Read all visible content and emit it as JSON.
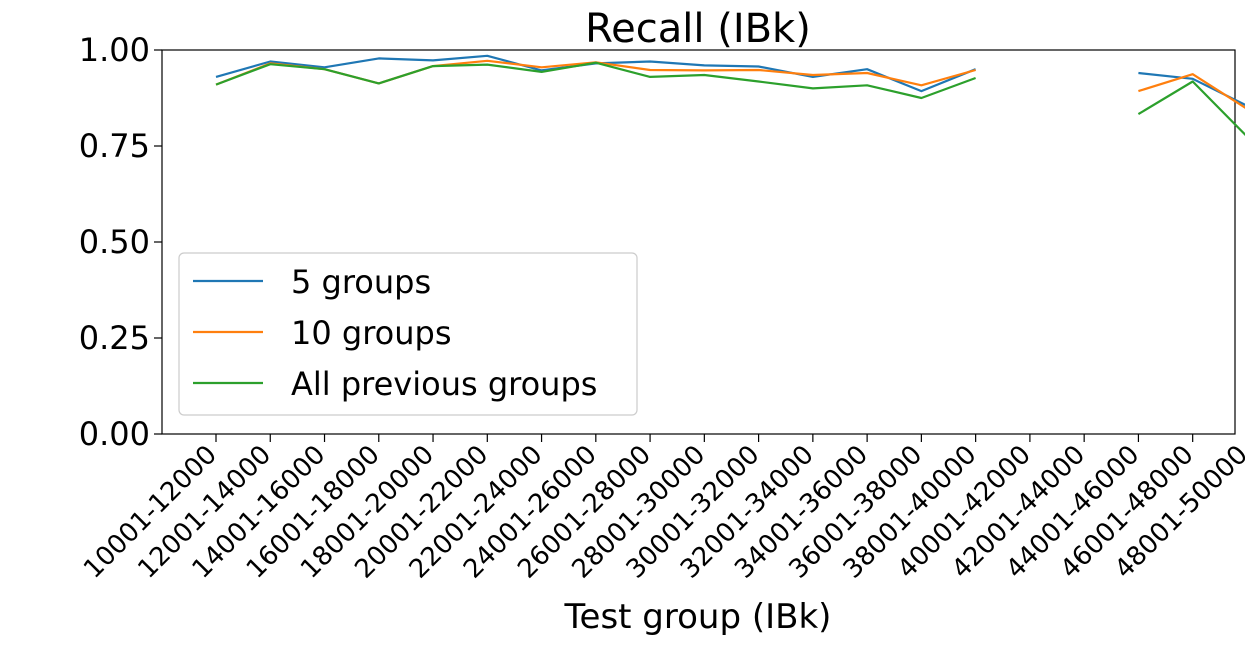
{
  "chart_data": {
    "type": "line",
    "title": "Recall (IBk)",
    "xlabel": "Test group (IBk)",
    "ylabel": "",
    "ylim": [
      0,
      1
    ],
    "yticks": [
      "0.00",
      "0.25",
      "0.50",
      "0.75",
      "1.00"
    ],
    "ytick_values": [
      0,
      0.25,
      0.5,
      0.75,
      1.0
    ],
    "categories": [
      "10001-12000",
      "12001-14000",
      "14001-16000",
      "16001-18000",
      "18001-20000",
      "20001-22000",
      "22001-24000",
      "24001-26000",
      "26001-28000",
      "28001-30000",
      "30001-32000",
      "32001-34000",
      "34001-36000",
      "36001-38000",
      "38001-40000",
      "40001-42000",
      "42001-44000",
      "44001-46000",
      "46001-48000",
      "48001-50000"
    ],
    "grid": false,
    "legend_position": "lower-left",
    "series": [
      {
        "name": "5 groups",
        "color": "#1f77b4",
        "values": [
          0.93,
          0.97,
          0.955,
          0.978,
          0.973,
          0.985,
          0.947,
          0.965,
          0.97,
          0.96,
          0.957,
          0.93,
          0.95,
          0.893,
          0.95,
          null,
          null,
          0.94,
          0.925,
          0.855
        ]
      },
      {
        "name": "10 groups",
        "color": "#ff7f0e",
        "values": [
          0.91,
          0.965,
          0.95,
          0.913,
          0.958,
          0.972,
          0.955,
          0.968,
          0.948,
          0.947,
          0.948,
          0.935,
          0.94,
          0.908,
          0.948,
          null,
          null,
          0.893,
          0.937,
          0.847
        ]
      },
      {
        "name": "All previous groups",
        "color": "#2ca02c",
        "values": [
          0.91,
          0.963,
          0.95,
          0.913,
          0.958,
          0.962,
          0.943,
          0.967,
          0.93,
          0.935,
          0.918,
          0.9,
          0.908,
          0.875,
          0.927,
          null,
          null,
          0.833,
          0.918,
          0.775
        ]
      }
    ]
  }
}
